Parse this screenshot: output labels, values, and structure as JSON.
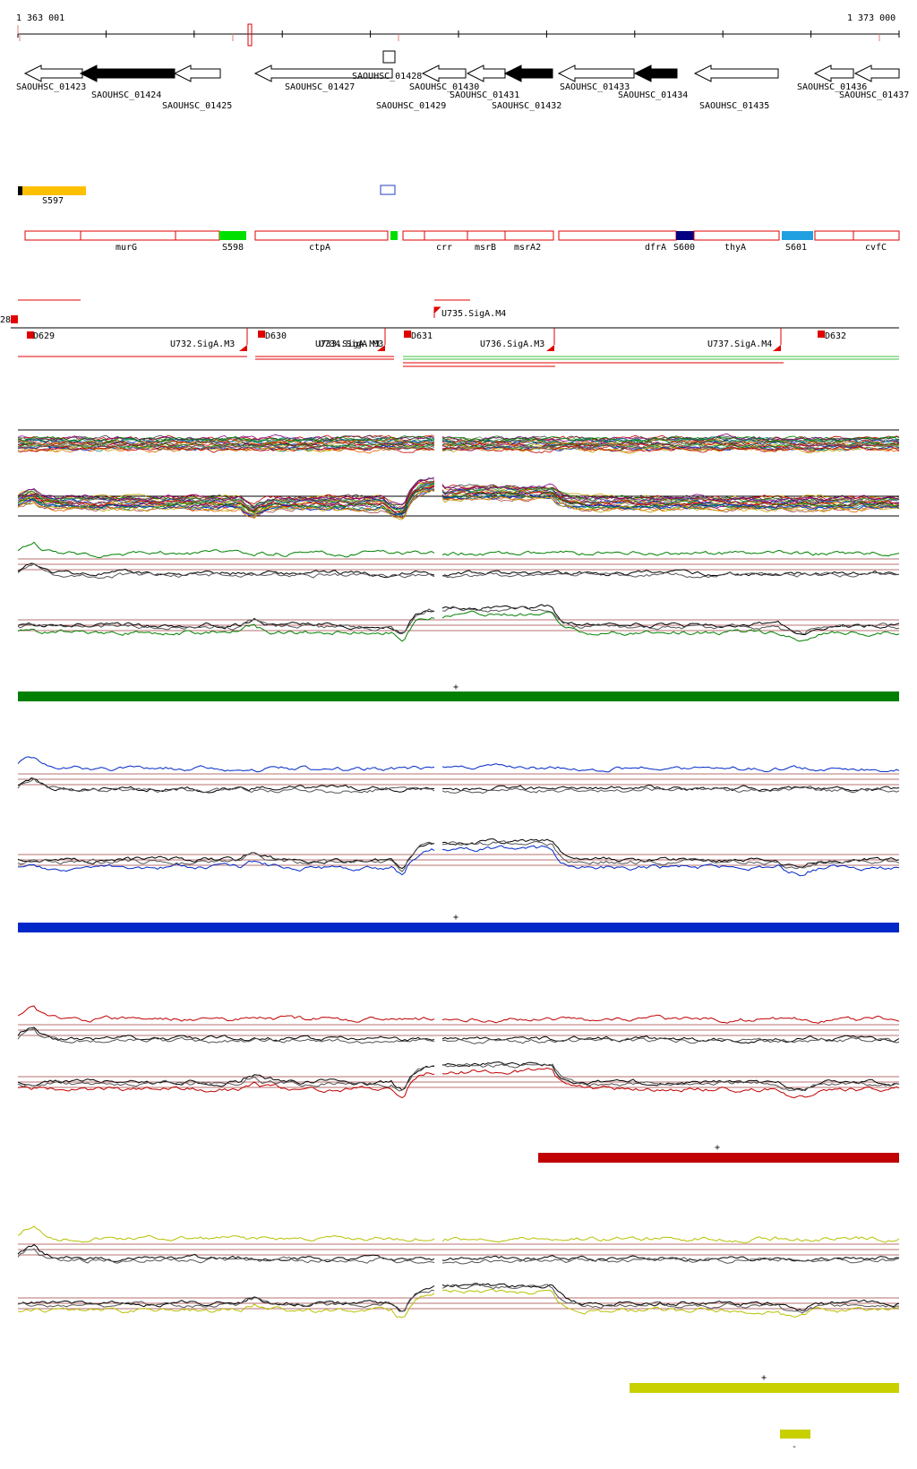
{
  "ruler": {
    "start_label": "1 363 001",
    "end_label": "1 373 000"
  },
  "genes": [
    {
      "id": "SAOUHSC_01423",
      "filled": false,
      "strand": "-"
    },
    {
      "id": "SAOUHSC_01424",
      "filled": true,
      "strand": "-"
    },
    {
      "id": "SAOUHSC_01425",
      "filled": false,
      "strand": "-"
    },
    {
      "id": "SAOUHSC_01427",
      "filled": false,
      "strand": "-"
    },
    {
      "id": "SAOUHSC_01428",
      "filled": false,
      "strand": "+"
    },
    {
      "id": "SAOUHSC_01429",
      "filled": false,
      "strand": "-"
    },
    {
      "id": "SAOUHSC_01430",
      "filled": false,
      "strand": "-"
    },
    {
      "id": "SAOUHSC_01431",
      "filled": false,
      "strand": "-"
    },
    {
      "id": "SAOUHSC_01432",
      "filled": true,
      "strand": "-"
    },
    {
      "id": "SAOUHSC_01433",
      "filled": false,
      "strand": "-"
    },
    {
      "id": "SAOUHSC_01434",
      "filled": true,
      "strand": "-"
    },
    {
      "id": "SAOUHSC_01435",
      "filled": false,
      "strand": "-"
    },
    {
      "id": "SAOUHSC_01436",
      "filled": false,
      "strand": "-"
    },
    {
      "id": "SAOUHSC_01437",
      "filled": false,
      "strand": "-"
    }
  ],
  "segments_top": [
    {
      "label": "S597",
      "color": "#ffc000"
    }
  ],
  "annotations": [
    {
      "label": "murG"
    },
    {
      "label": "S598",
      "color": "#00e000"
    },
    {
      "label": "ctpA"
    },
    {
      "label": "crr"
    },
    {
      "label": "msrB"
    },
    {
      "label": "msrA2"
    },
    {
      "label": "dfrA"
    },
    {
      "label": "S600",
      "color": "#000080"
    },
    {
      "label": "thyA"
    },
    {
      "label": "S601",
      "color": "#20a0e0"
    },
    {
      "label": "cvfC"
    }
  ],
  "promoters": [
    {
      "label": "28"
    },
    {
      "label": "D629"
    },
    {
      "label": "U732.SigA.M3"
    },
    {
      "label": "D630"
    },
    {
      "label": "U733.SigA.M3"
    },
    {
      "label": "U734.SigA.M3"
    },
    {
      "label": "D631"
    },
    {
      "label": "U735.SigA.M4"
    },
    {
      "label": "U736.SigA.M3"
    },
    {
      "label": "U737.SigA.M4"
    },
    {
      "label": "D632"
    }
  ],
  "panels": [
    {
      "name": "green",
      "color": "#008000",
      "strand_label": "+"
    },
    {
      "name": "blue",
      "color": "#0028c8",
      "strand_label": "+"
    },
    {
      "name": "red",
      "color": "#c00000",
      "strand_label": "+"
    },
    {
      "name": "yellow",
      "color": "#c8d000",
      "strand_label": "+",
      "extra_label": "-"
    }
  ]
}
